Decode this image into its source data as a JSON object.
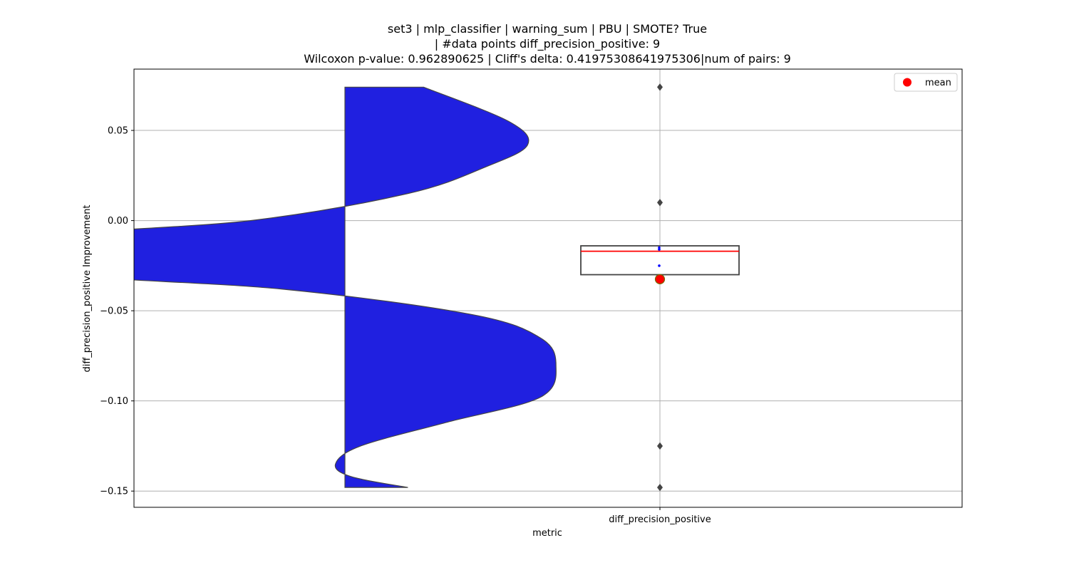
{
  "chart_data": {
    "type": "violin+box",
    "title_lines": [
      "set3 | mlp_classifier | warning_sum | PBU | SMOTE? True",
      "| #data points diff_precision_positive: 9",
      "Wilcoxon p-value: 0.962890625 | Cliff's delta: 0.41975308641975306|num of pairs: 9"
    ],
    "xlabel": "metric",
    "ylabel": "diff_precision_positive Improvement",
    "categories": [
      "diff_precision_positive"
    ],
    "ylim": [
      -0.159,
      0.084
    ],
    "yticks": [
      0.05,
      0.0,
      -0.05,
      -0.1,
      -0.15
    ],
    "ytick_labels": [
      "0.05",
      "0.00",
      "−0.05",
      "−0.10",
      "−0.15"
    ],
    "grid": true,
    "legend": {
      "placement": "top-right",
      "entries": [
        {
          "label": "mean",
          "color": "#ff0000"
        }
      ]
    },
    "colors": {
      "violin_fill": "#2020e0",
      "violin_edge": "#444444",
      "median_line": "#ff0000",
      "mean_marker": "#ff0000",
      "box_edge": "#444444",
      "points": "#0000ff",
      "outliers": "#444444"
    },
    "violin": {
      "category": "diff_precision_positive",
      "side": "left",
      "y_min": -0.148,
      "y_max": 0.074,
      "density_profile": [
        {
          "y": 0.074,
          "w": 0.25
        },
        {
          "y": 0.055,
          "w": 0.52
        },
        {
          "y": 0.042,
          "w": 0.58
        },
        {
          "y": 0.03,
          "w": 0.45
        },
        {
          "y": 0.015,
          "w": 0.2
        },
        {
          "y": 0.0,
          "w": -0.3
        },
        {
          "y": -0.01,
          "w": -1.0
        },
        {
          "y": -0.028,
          "w": -1.0
        },
        {
          "y": -0.038,
          "w": -0.2
        },
        {
          "y": -0.052,
          "w": 0.4
        },
        {
          "y": -0.065,
          "w": 0.62
        },
        {
          "y": -0.08,
          "w": 0.67
        },
        {
          "y": -0.098,
          "w": 0.62
        },
        {
          "y": -0.112,
          "w": 0.32
        },
        {
          "y": -0.125,
          "w": 0.05
        },
        {
          "y": -0.135,
          "w": -0.03
        },
        {
          "y": -0.142,
          "w": 0.02
        },
        {
          "y": -0.148,
          "w": 0.2
        }
      ]
    },
    "box": {
      "category": "diff_precision_positive",
      "q1": -0.03,
      "median": -0.017,
      "q3": -0.014,
      "mean": -0.0325,
      "inner_points": [
        -0.015,
        -0.016,
        -0.025
      ],
      "outliers": [
        0.074,
        0.01,
        -0.125,
        -0.148
      ]
    }
  }
}
